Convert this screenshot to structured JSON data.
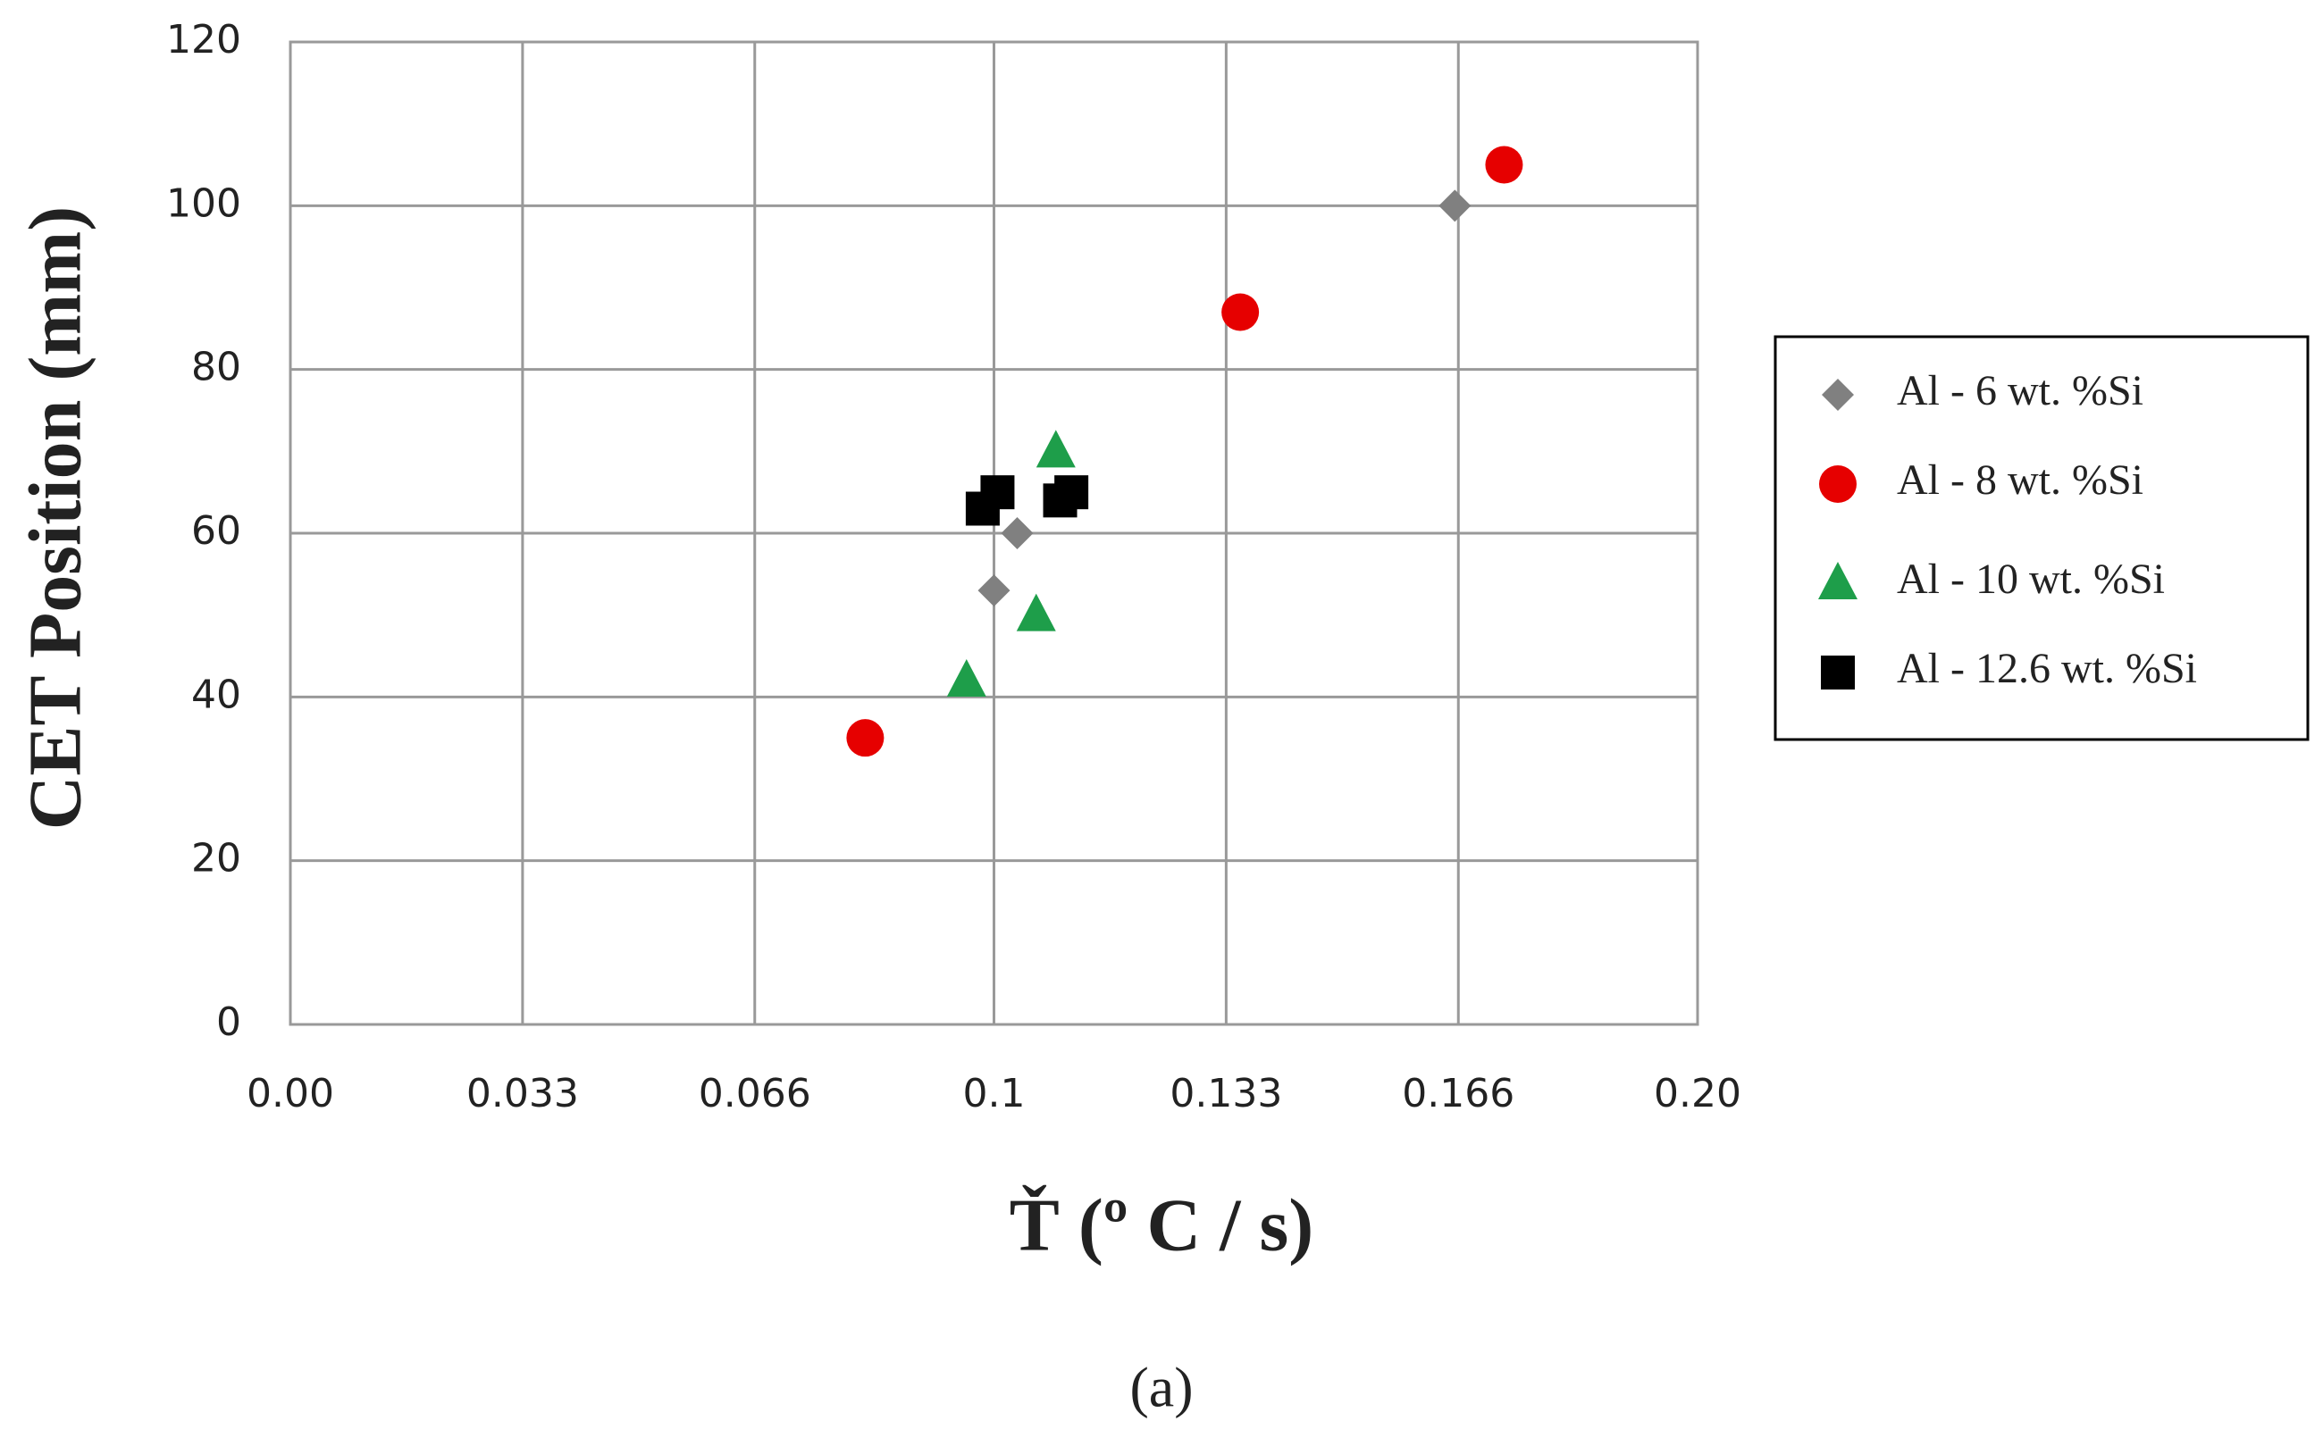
{
  "chart_data": {
    "type": "scatter",
    "x_label": "Ť (º C / s)",
    "y_label": "CET Position (mm)",
    "caption": "(a)",
    "xlim": [
      0,
      0.2
    ],
    "xticks": [
      {
        "value": 0,
        "label": "0.00"
      },
      0.033,
      0.066,
      0.1,
      0.133,
      0.166,
      {
        "value": 0.2,
        "label": "0.20"
      }
    ],
    "ylim": [
      0,
      120
    ],
    "yticks": [
      0,
      20,
      40,
      60,
      80,
      100,
      120
    ],
    "grid": true,
    "legend": "right",
    "series": [
      {
        "name": "Al - 6 wt. %Si",
        "color": "#808080",
        "marker": "diamond",
        "x": [
          0.1655,
          0.1,
          0.1033
        ],
        "values": [
          100,
          53,
          60
        ]
      },
      {
        "name": "Al - 8 wt. %Si",
        "color": "#e60000",
        "marker": "circle",
        "x": [
          0.1725,
          0.135,
          0.0817
        ],
        "values": [
          105,
          87,
          35
        ]
      },
      {
        "name": "Al - 10 wt. %Si",
        "color": "#1e9e4a",
        "marker": "triangle",
        "x": [
          0.1088,
          0.106,
          0.0961
        ],
        "values": [
          70,
          50,
          42
        ]
      },
      {
        "name": "Al - 12.6 wt. %Si",
        "color": "#000000",
        "marker": "square",
        "x": [
          0.0984,
          0.1005,
          0.1094,
          0.111
        ],
        "values": [
          63,
          65,
          64,
          65
        ]
      }
    ]
  }
}
